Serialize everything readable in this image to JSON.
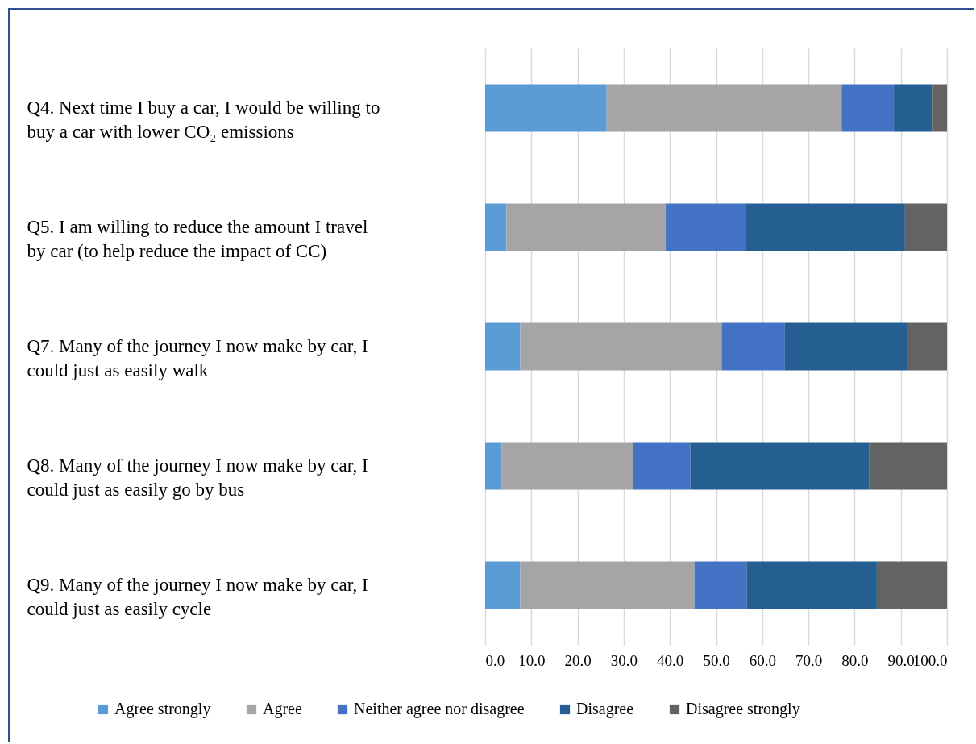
{
  "chart_data": {
    "type": "bar",
    "orientation": "horizontal",
    "stacked": true,
    "categories": [
      "Q4. Next time I buy a car, I would be willing to buy a car with lower CO₂ emissions",
      "Q5. I am willing to reduce the amount I travel by car (to help reduce the impact of CC)",
      "Q7. Many of the journey I now make by car, I could just as easily walk",
      "Q8. Many of the journey I now make by car, I could just as easily go by bus",
      "Q9. Many of the journey I now make by car, I could just as easily cycle"
    ],
    "series": [
      {
        "name": "Agree strongly",
        "color": "#5b9bd5",
        "values": [
          26.3,
          4.6,
          7.6,
          3.6,
          7.6
        ]
      },
      {
        "name": "Agree",
        "color": "#a5a5a5",
        "values": [
          50.9,
          34.5,
          43.6,
          28.4,
          37.7
        ]
      },
      {
        "name": "Neither agree nor disagree",
        "color": "#4472c4",
        "values": [
          11.3,
          17.3,
          13.7,
          12.4,
          11.3
        ]
      },
      {
        "name": "Disagree",
        "color": "#255e91",
        "values": [
          8.4,
          34.5,
          26.5,
          38.8,
          28.2
        ]
      },
      {
        "name": "Disagree strongly",
        "color": "#636363",
        "values": [
          3.1,
          9.1,
          8.6,
          16.8,
          15.2
        ]
      }
    ],
    "xlim": [
      0,
      100
    ],
    "xticks": [
      {
        "value": 0,
        "label": "0.0"
      },
      {
        "value": 10,
        "label": "10.0"
      },
      {
        "value": 20,
        "label": "20.0"
      },
      {
        "value": 30,
        "label": "30.0"
      },
      {
        "value": 40,
        "label": "40.0"
      },
      {
        "value": 50,
        "label": "50.0"
      },
      {
        "value": 60,
        "label": "60.0"
      },
      {
        "value": 70,
        "label": "70.0"
      },
      {
        "value": 80,
        "label": "80.0"
      },
      {
        "value": 90,
        "label": "90.0"
      },
      {
        "value": 100,
        "label": "100.0"
      }
    ],
    "grid": "x",
    "legend": "bottom"
  }
}
